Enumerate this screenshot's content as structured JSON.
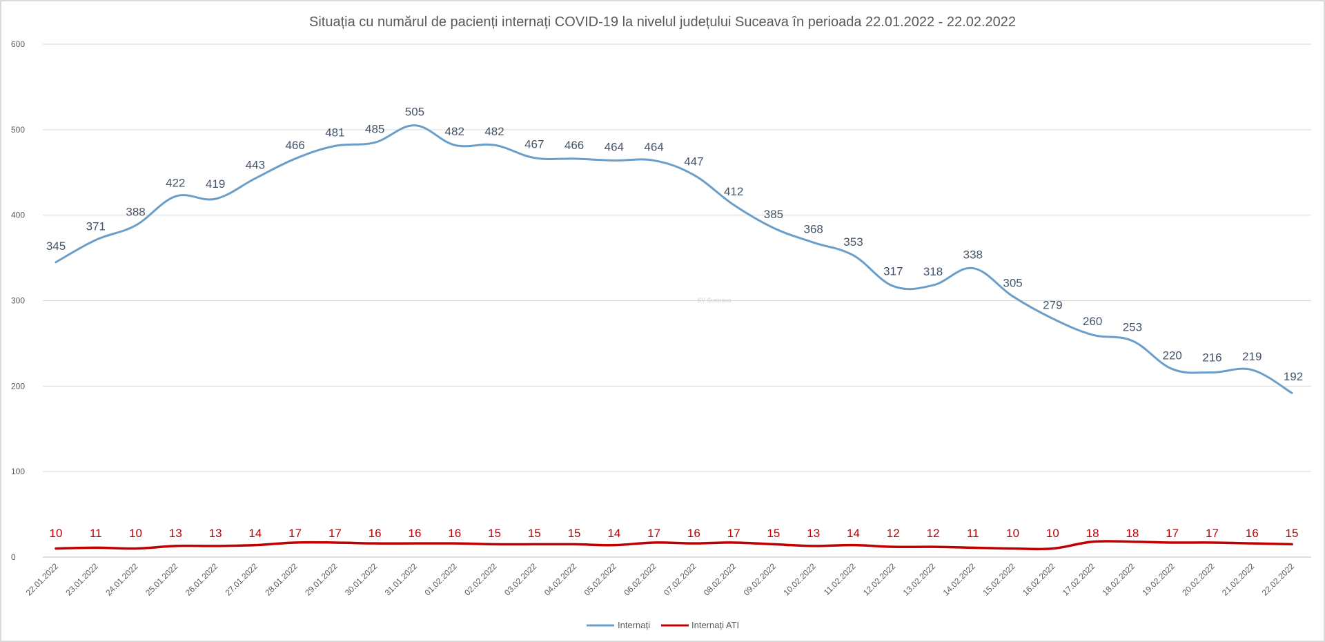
{
  "chart_data": {
    "type": "line",
    "title": "Situația cu numărul de pacienți internați COVID-19 la nivelul județului Suceava în perioada 22.01.2022 - 22.02.2022",
    "xlabel": "",
    "ylabel": "",
    "ylim": [
      0,
      600
    ],
    "yticks": [
      "0",
      "100",
      "200",
      "300",
      "400",
      "500",
      "600"
    ],
    "grid": true,
    "legend_position": "bottom",
    "watermark": "SV Suceava",
    "categories": [
      "22.01.2022",
      "23.01.2022",
      "24.01.2022",
      "25.01.2022",
      "26.01.2022",
      "27.01.2022",
      "28.01.2022",
      "29.01.2022",
      "30.01.2022",
      "31.01.2022",
      "01.02.2022",
      "02.02.2022",
      "03.02.2022",
      "04.02.2022",
      "05.02.2022",
      "06.02.2022",
      "07.02.2022",
      "08.02.2022",
      "09.02.2022",
      "10.02.2022",
      "11.02.2022",
      "12.02.2022",
      "13.02.2022",
      "14.02.2022",
      "15.02.2022",
      "16.02.2022",
      "17.02.2022",
      "18.02.2022",
      "19.02.2022",
      "20.02.2022",
      "21.02.2022",
      "22.02.2022"
    ],
    "series": [
      {
        "name": "Internați",
        "color": "#6a9ec9",
        "label_color": "#44546a",
        "values": [
          345,
          371,
          388,
          422,
          419,
          443,
          466,
          481,
          485,
          505,
          482,
          482,
          467,
          466,
          464,
          464,
          447,
          412,
          385,
          368,
          353,
          317,
          318,
          338,
          305,
          279,
          260,
          253,
          220,
          216,
          219,
          192
        ]
      },
      {
        "name": "Internați ATI",
        "color": "#c00000",
        "label_color": "#c00000",
        "values": [
          10,
          11,
          10,
          13,
          13,
          14,
          17,
          17,
          16,
          16,
          16,
          15,
          15,
          15,
          14,
          17,
          16,
          17,
          15,
          13,
          14,
          12,
          12,
          11,
          10,
          10,
          18,
          18,
          17,
          17,
          16,
          15
        ]
      }
    ]
  }
}
